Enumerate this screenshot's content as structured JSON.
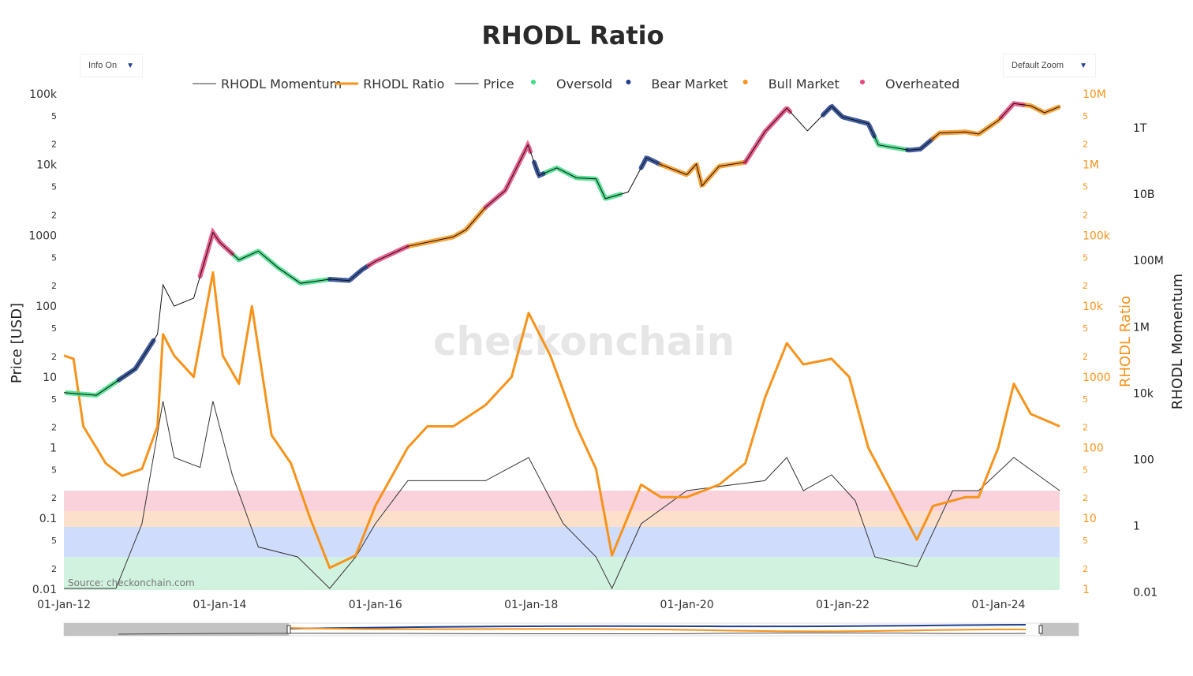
{
  "title": "RHODL Ratio",
  "controls": {
    "info_label": "Info On",
    "zoom_label": "Default Zoom",
    "dropdown_icon": "triangle-down-icon"
  },
  "watermark": "checkonchain",
  "source": "Source: checkonchain.com",
  "colors": {
    "price": "#111111",
    "rhodl_ratio": "#f7931a",
    "momentum": "#333333",
    "oversold": "#3ddc84",
    "bear": "#1f3f8f",
    "bull": "#f7931a",
    "overheated": "#e8447a",
    "band_red": "#f9d2dc",
    "band_orange": "#fde0cc",
    "band_blue": "#cfdcfb",
    "band_green": "#d2f2e0"
  },
  "legend": [
    {
      "label": "RHODL Momentum",
      "kind": "line",
      "color": "#333333"
    },
    {
      "label": "RHODL Ratio",
      "kind": "line",
      "color": "#f7931a"
    },
    {
      "label": "Price",
      "kind": "line",
      "color": "#111111"
    },
    {
      "label": "Oversold",
      "kind": "dot",
      "color": "#3ddc84"
    },
    {
      "label": "Bear Market",
      "kind": "dot",
      "color": "#1f3f8f"
    },
    {
      "label": "Bull Market",
      "kind": "dot",
      "color": "#f7931a"
    },
    {
      "label": "Overheated",
      "kind": "dot",
      "color": "#e8447a"
    }
  ],
  "chart_data": {
    "type": "line",
    "title": "RHODL Ratio",
    "x_ticks": [
      "01-Jan-12",
      "01-Jan-14",
      "01-Jan-16",
      "01-Jan-18",
      "01-Jan-20",
      "01-Jan-22",
      "01-Jan-24"
    ],
    "x_range": [
      "2012-01-01",
      "2024-10-15"
    ],
    "axes": {
      "price": {
        "label": "Price [USD]",
        "scale": "log",
        "ticks": [
          "100k",
          "5",
          "2",
          "10k",
          "5",
          "2",
          "1000",
          "5",
          "2",
          "100",
          "5",
          "2",
          "10",
          "5",
          "2",
          "1",
          "5",
          "2",
          "0.1",
          "5",
          "2",
          "0.01"
        ]
      },
      "rhodl_ratio": {
        "label": "RHODL Ratio",
        "scale": "log",
        "ticks": [
          "10M",
          "5",
          "2",
          "1M",
          "5",
          "2",
          "100k",
          "5",
          "2",
          "10k",
          "5",
          "2",
          "1000",
          "5",
          "2",
          "100",
          "5",
          "2",
          "10",
          "5",
          "2",
          "1"
        ]
      },
      "momentum": {
        "label": "RHODL Momentum",
        "scale": "log",
        "ticks": [
          "1T",
          "10B",
          "100M",
          "1M",
          "10k",
          "100",
          "1",
          "0.01"
        ]
      }
    },
    "series": [
      {
        "name": "Price",
        "axis": "price",
        "points": [
          [
            "2012-01-01",
            6
          ],
          [
            "2012-06-01",
            5.5
          ],
          [
            "2012-12-01",
            13
          ],
          [
            "2013-03-15",
            40
          ],
          [
            "2013-04-10",
            200
          ],
          [
            "2013-06-01",
            100
          ],
          [
            "2013-09-01",
            130
          ],
          [
            "2013-11-30",
            1100
          ],
          [
            "2014-01-01",
            800
          ],
          [
            "2014-04-01",
            450
          ],
          [
            "2014-07-01",
            600
          ],
          [
            "2014-10-01",
            350
          ],
          [
            "2015-01-15",
            210
          ],
          [
            "2015-06-01",
            240
          ],
          [
            "2015-09-01",
            230
          ],
          [
            "2015-11-01",
            330
          ],
          [
            "2016-01-01",
            430
          ],
          [
            "2016-06-01",
            700
          ],
          [
            "2016-12-31",
            950
          ],
          [
            "2017-03-01",
            1200
          ],
          [
            "2017-06-01",
            2500
          ],
          [
            "2017-09-01",
            4300
          ],
          [
            "2017-12-17",
            19000
          ],
          [
            "2018-02-06",
            7000
          ],
          [
            "2018-05-01",
            9000
          ],
          [
            "2018-08-01",
            6500
          ],
          [
            "2018-11-01",
            6300
          ],
          [
            "2018-12-15",
            3300
          ],
          [
            "2019-04-01",
            4100
          ],
          [
            "2019-06-26",
            12500
          ],
          [
            "2019-09-01",
            10000
          ],
          [
            "2020-01-01",
            7200
          ],
          [
            "2020-02-15",
            10200
          ],
          [
            "2020-03-12",
            5000
          ],
          [
            "2020-06-01",
            9500
          ],
          [
            "2020-10-01",
            10800
          ],
          [
            "2021-01-01",
            29000
          ],
          [
            "2021-04-14",
            63000
          ],
          [
            "2021-07-20",
            30000
          ],
          [
            "2021-11-10",
            67000
          ],
          [
            "2022-01-01",
            47000
          ],
          [
            "2022-05-01",
            38000
          ],
          [
            "2022-06-18",
            19000
          ],
          [
            "2022-11-09",
            16000
          ],
          [
            "2023-01-01",
            16600
          ],
          [
            "2023-04-01",
            28000
          ],
          [
            "2023-08-01",
            29000
          ],
          [
            "2023-10-01",
            27000
          ],
          [
            "2024-01-01",
            42000
          ],
          [
            "2024-03-14",
            73000
          ],
          [
            "2024-06-01",
            68000
          ],
          [
            "2024-08-05",
            54000
          ],
          [
            "2024-10-15",
            66000
          ]
        ]
      },
      {
        "name": "RHODL Ratio",
        "axis": "rhodl_ratio",
        "points": [
          [
            "2012-01-01",
            2000
          ],
          [
            "2012-02-15",
            1800
          ],
          [
            "2012-04-01",
            200
          ],
          [
            "2012-06-01",
            100
          ],
          [
            "2012-07-15",
            60
          ],
          [
            "2012-10-01",
            40
          ],
          [
            "2013-01-01",
            50
          ],
          [
            "2013-03-15",
            200
          ],
          [
            "2013-04-10",
            4000
          ],
          [
            "2013-06-01",
            2000
          ],
          [
            "2013-09-01",
            1000
          ],
          [
            "2013-11-30",
            30000
          ],
          [
            "2014-01-15",
            2000
          ],
          [
            "2014-04-01",
            800
          ],
          [
            "2014-06-01",
            10000
          ],
          [
            "2014-09-01",
            150
          ],
          [
            "2014-12-01",
            60
          ],
          [
            "2015-03-01",
            10
          ],
          [
            "2015-06-01",
            2
          ],
          [
            "2015-10-01",
            3
          ],
          [
            "2016-01-01",
            15
          ],
          [
            "2016-06-01",
            100
          ],
          [
            "2016-09-01",
            200
          ],
          [
            "2017-01-01",
            200
          ],
          [
            "2017-06-01",
            400
          ],
          [
            "2017-10-01",
            1000
          ],
          [
            "2017-12-20",
            8000
          ],
          [
            "2018-04-01",
            2000
          ],
          [
            "2018-08-01",
            200
          ],
          [
            "2018-11-01",
            50
          ],
          [
            "2019-01-15",
            3
          ],
          [
            "2019-06-01",
            30
          ],
          [
            "2019-09-01",
            20
          ],
          [
            "2020-01-01",
            20
          ],
          [
            "2020-06-01",
            30
          ],
          [
            "2020-10-01",
            60
          ],
          [
            "2021-01-01",
            500
          ],
          [
            "2021-04-14",
            3000
          ],
          [
            "2021-07-01",
            1500
          ],
          [
            "2021-11-10",
            1800
          ],
          [
            "2022-02-01",
            1000
          ],
          [
            "2022-05-01",
            100
          ],
          [
            "2022-09-01",
            20
          ],
          [
            "2022-12-15",
            5
          ],
          [
            "2023-03-01",
            15
          ],
          [
            "2023-08-01",
            20
          ],
          [
            "2023-10-01",
            20
          ],
          [
            "2024-01-01",
            100
          ],
          [
            "2024-03-14",
            800
          ],
          [
            "2024-06-01",
            300
          ],
          [
            "2024-10-15",
            200
          ]
        ]
      },
      {
        "name": "RHODL Momentum",
        "axis": "momentum",
        "points": [
          [
            "2012-01-01",
            0.002
          ],
          [
            "2012-09-01",
            0.01
          ],
          [
            "2013-01-01",
            1
          ],
          [
            "2013-04-10",
            5000
          ],
          [
            "2013-06-01",
            100
          ],
          [
            "2013-10-01",
            50
          ],
          [
            "2013-11-30",
            5000
          ],
          [
            "2014-03-01",
            30
          ],
          [
            "2014-07-01",
            0.2
          ],
          [
            "2015-01-01",
            0.1
          ],
          [
            "2015-06-01",
            0.01
          ],
          [
            "2015-10-01",
            0.1
          ],
          [
            "2016-01-01",
            1
          ],
          [
            "2016-06-01",
            20
          ],
          [
            "2017-01-01",
            20
          ],
          [
            "2017-06-01",
            20
          ],
          [
            "2017-12-20",
            100
          ],
          [
            "2018-06-01",
            1
          ],
          [
            "2018-11-01",
            0.1
          ],
          [
            "2019-01-15",
            0.01
          ],
          [
            "2019-06-01",
            1
          ],
          [
            "2020-01-01",
            10
          ],
          [
            "2021-01-01",
            20
          ],
          [
            "2021-04-14",
            100
          ],
          [
            "2021-07-01",
            10
          ],
          [
            "2021-11-10",
            30
          ],
          [
            "2022-03-01",
            5
          ],
          [
            "2022-06-01",
            0.1
          ],
          [
            "2022-12-15",
            0.05
          ],
          [
            "2023-06-01",
            10
          ],
          [
            "2023-10-01",
            10
          ],
          [
            "2024-03-14",
            100
          ],
          [
            "2024-10-15",
            10
          ]
        ]
      }
    ],
    "regimes": [
      {
        "name": "Oversold",
        "ranges": [
          [
            "2012-01-15",
            "2012-09-15"
          ],
          [
            "2014-03-01",
            "2015-06-01"
          ],
          [
            "2018-03-01",
            "2019-03-01"
          ],
          [
            "2022-06-01",
            "2022-11-01"
          ]
        ]
      },
      {
        "name": "Bear Market",
        "ranges": [
          [
            "2012-09-15",
            "2013-03-01"
          ],
          [
            "2015-06-01",
            "2015-12-01"
          ],
          [
            "2018-01-15",
            "2018-03-01"
          ],
          [
            "2019-06-01",
            "2019-09-01"
          ],
          [
            "2021-10-01",
            "2022-06-01"
          ],
          [
            "2022-11-01",
            "2023-03-01"
          ]
        ]
      },
      {
        "name": "Bull Market",
        "ranges": [
          [
            "2016-06-01",
            "2017-06-01"
          ],
          [
            "2019-09-01",
            "2020-10-01"
          ],
          [
            "2023-03-01",
            "2024-01-15"
          ],
          [
            "2024-05-01",
            "2024-10-15"
          ]
        ]
      },
      {
        "name": "Overheated",
        "ranges": [
          [
            "2013-10-01",
            "2014-03-01"
          ],
          [
            "2015-12-01",
            "2016-06-01"
          ],
          [
            "2017-06-01",
            "2017-12-31"
          ],
          [
            "2020-10-01",
            "2021-05-01"
          ],
          [
            "2024-01-15",
            "2024-05-01"
          ]
        ]
      }
    ],
    "legend_position": "top-center",
    "grid": false
  }
}
